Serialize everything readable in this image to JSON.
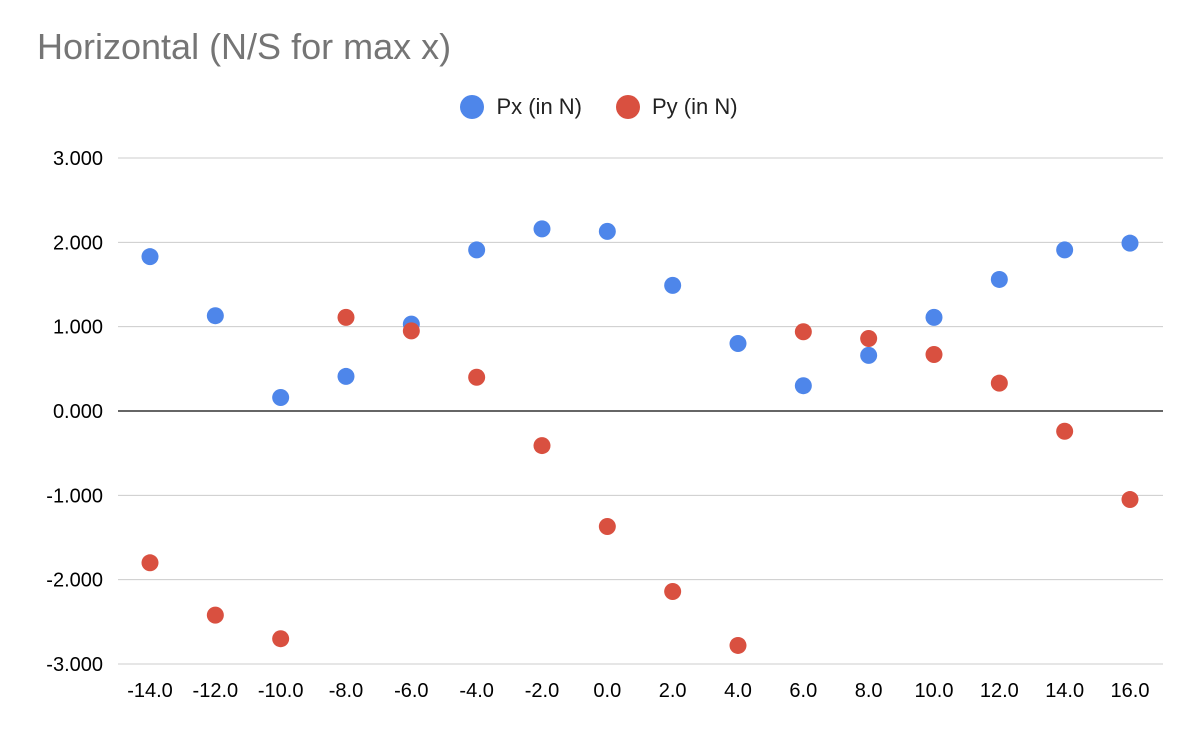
{
  "chart_data": {
    "type": "scatter",
    "title": "Horizontal (N/S for max x)",
    "xlabel": "",
    "ylabel": "",
    "x": [
      -14,
      -12,
      -10,
      -8,
      -6,
      -4,
      -2,
      0,
      2,
      4,
      6,
      8,
      10,
      12,
      14,
      16
    ],
    "x_tick_labels": [
      "-14.0",
      "-12.0",
      "-10.0",
      "-8.0",
      "-6.0",
      "-4.0",
      "-2.0",
      "0.0",
      "2.0",
      "4.0",
      "6.0",
      "8.0",
      "10.0",
      "12.0",
      "14.0",
      "16.0"
    ],
    "y_tick_values": [
      3,
      2,
      1,
      0,
      -1,
      -2,
      -3
    ],
    "y_tick_labels": [
      "3.000",
      "2.000",
      "1.000",
      "0.000",
      "-1.000",
      "-2.000",
      "-3.000"
    ],
    "ylim": [
      -3,
      3
    ],
    "grid": true,
    "legend_position": "top",
    "series": [
      {
        "name": "Px (in N)",
        "color": "#4e86ea",
        "values": [
          1.83,
          1.13,
          0.16,
          0.41,
          1.03,
          1.91,
          2.16,
          2.13,
          1.49,
          0.8,
          0.3,
          0.66,
          1.11,
          1.56,
          1.91,
          1.99
        ]
      },
      {
        "name": "Py (in N)",
        "color": "#d95040",
        "values": [
          -1.8,
          -2.42,
          -2.7,
          1.11,
          0.95,
          0.4,
          -0.41,
          -1.37,
          -2.14,
          -2.78,
          0.94,
          0.86,
          0.67,
          0.33,
          -0.24,
          -1.05
        ]
      }
    ]
  }
}
